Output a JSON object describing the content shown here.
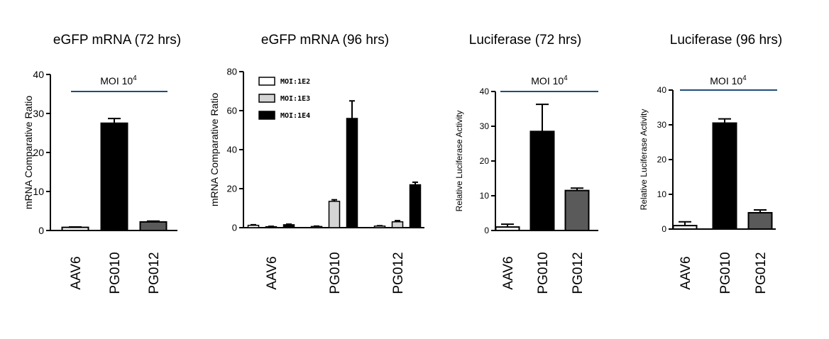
{
  "colors": {
    "white": "#ffffff",
    "black": "#000000",
    "light_gray": "#d4d4d4",
    "dark_gray": "#5a5a5a",
    "moi_line": "#1f4e79"
  },
  "chart_data": [
    {
      "type": "bar",
      "title": "eGFP mRNA (72 hrs)",
      "ylabel": "mRNA Comparative Ratio",
      "ylim": [
        0,
        40
      ],
      "yticks": [
        "0",
        "10",
        "20",
        "30",
        "40"
      ],
      "annotation": {
        "text": "MOI 10",
        "sup": "4"
      },
      "categories": [
        "AAV6",
        "PG010",
        "PG012"
      ],
      "values": [
        0.8,
        27.5,
        2.2
      ],
      "errors": [
        0.1,
        1.2,
        0.2
      ],
      "bar_colors": [
        "#ffffff",
        "#000000",
        "#5a5a5a"
      ]
    },
    {
      "type": "bar",
      "title": "eGFP mRNA (96 hrs)",
      "ylabel": "mRNA Comparative Ratio",
      "ylim": [
        0,
        80
      ],
      "yticks": [
        "0",
        "20",
        "40",
        "60",
        "80"
      ],
      "categories": [
        "AAV6",
        "PG010",
        "PG012"
      ],
      "series": [
        {
          "name": "MOI:1E2",
          "color": "#ffffff",
          "values": [
            1.2,
            0.6,
            0.8
          ],
          "errors": [
            0.3,
            0.2,
            0.2
          ]
        },
        {
          "name": "MOI:1E3",
          "color": "#d4d4d4",
          "values": [
            0.5,
            13.5,
            3.0
          ],
          "errors": [
            0.2,
            0.8,
            0.6
          ]
        },
        {
          "name": "MOI:1E4",
          "color": "#000000",
          "values": [
            1.5,
            56.0,
            22.0
          ],
          "errors": [
            0.3,
            9.0,
            1.3
          ]
        }
      ],
      "legend": "top-left"
    },
    {
      "type": "bar",
      "title": "Luciferase (72 hrs)",
      "ylabel": "Relative Luciferase Activity",
      "ylim": [
        0,
        40
      ],
      "yticks": [
        "0",
        "10",
        "20",
        "30",
        "40"
      ],
      "annotation": {
        "text": "MOI 10",
        "sup": "4"
      },
      "categories": [
        "AAV6",
        "PG010",
        "PG012"
      ],
      "values": [
        1.0,
        28.5,
        11.5
      ],
      "errors": [
        0.8,
        7.8,
        0.7
      ],
      "bar_colors": [
        "#ffffff",
        "#000000",
        "#5a5a5a"
      ]
    },
    {
      "type": "bar",
      "title": "Luciferase (96 hrs)",
      "ylabel": "Relative Luciferase Activity",
      "ylim": [
        0,
        40
      ],
      "yticks": [
        "0",
        "10",
        "20",
        "30",
        "40"
      ],
      "annotation": {
        "text": "MOI 10",
        "sup": "4"
      },
      "categories": [
        "AAV6",
        "PG010",
        "PG012"
      ],
      "values": [
        1.0,
        30.5,
        4.7
      ],
      "errors": [
        1.1,
        1.2,
        0.8
      ],
      "bar_colors": [
        "#ffffff",
        "#000000",
        "#5a5a5a"
      ]
    }
  ]
}
